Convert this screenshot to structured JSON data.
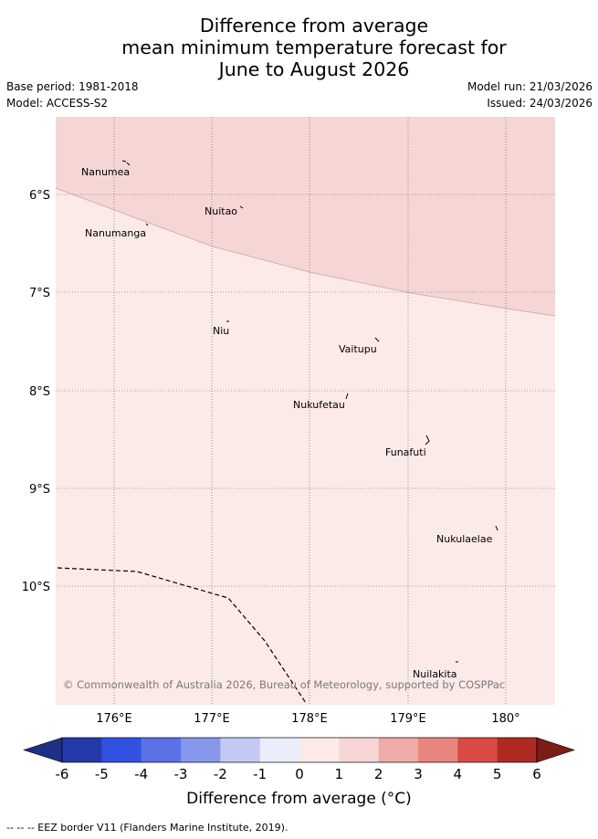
{
  "title": {
    "line1": "Difference from average",
    "line2": "mean minimum temperature forecast for",
    "line3": "June to August 2026"
  },
  "meta": {
    "base_period": "Base period: 1981-2018",
    "model": "Model: ACCESS-S2",
    "model_run": "Model run: 21/03/2026",
    "issued": "Issued: 24/03/2026"
  },
  "map": {
    "lat_labels": [
      "6°S",
      "7°S",
      "8°S",
      "9°S",
      "10°S"
    ],
    "lon_labels": [
      "176°E",
      "177°E",
      "178°E",
      "179°E",
      "180°"
    ],
    "places": [
      "Nanumea",
      "Nuitao",
      "Nanumanga",
      "Niu",
      "Vaitupu",
      "Nukufetau",
      "Funafuti",
      "Nukulaelae",
      "Nuilakita"
    ],
    "copyright": "© Commonwealth of Australia 2026, Bureau of Meteorology, supported by COSPPac",
    "zones": [
      {
        "category": "1 to 2",
        "color": "#f5d6d4"
      },
      {
        "category": "0 to 1",
        "color": "#fbeae8"
      }
    ]
  },
  "colorbar": {
    "ticks": [
      "-6",
      "-5",
      "-4",
      "-3",
      "-2",
      "-1",
      "0",
      "1",
      "2",
      "3",
      "4",
      "5",
      "6"
    ],
    "colors": [
      "#2539a8",
      "#3152e0",
      "#5b72e6",
      "#8797ec",
      "#c3c9f4",
      "#ecedfb",
      "#fbeae8",
      "#f5d6d4",
      "#eeaca8",
      "#e8857f",
      "#dc4b43",
      "#ad2b22"
    ],
    "under_color": "#1e2f86",
    "over_color": "#7a1d17",
    "label": "Difference from average (°C)"
  },
  "footer": {
    "eez_note": "--  --  -- EEZ border V11 (Flanders Marine Institute, 2019)."
  }
}
